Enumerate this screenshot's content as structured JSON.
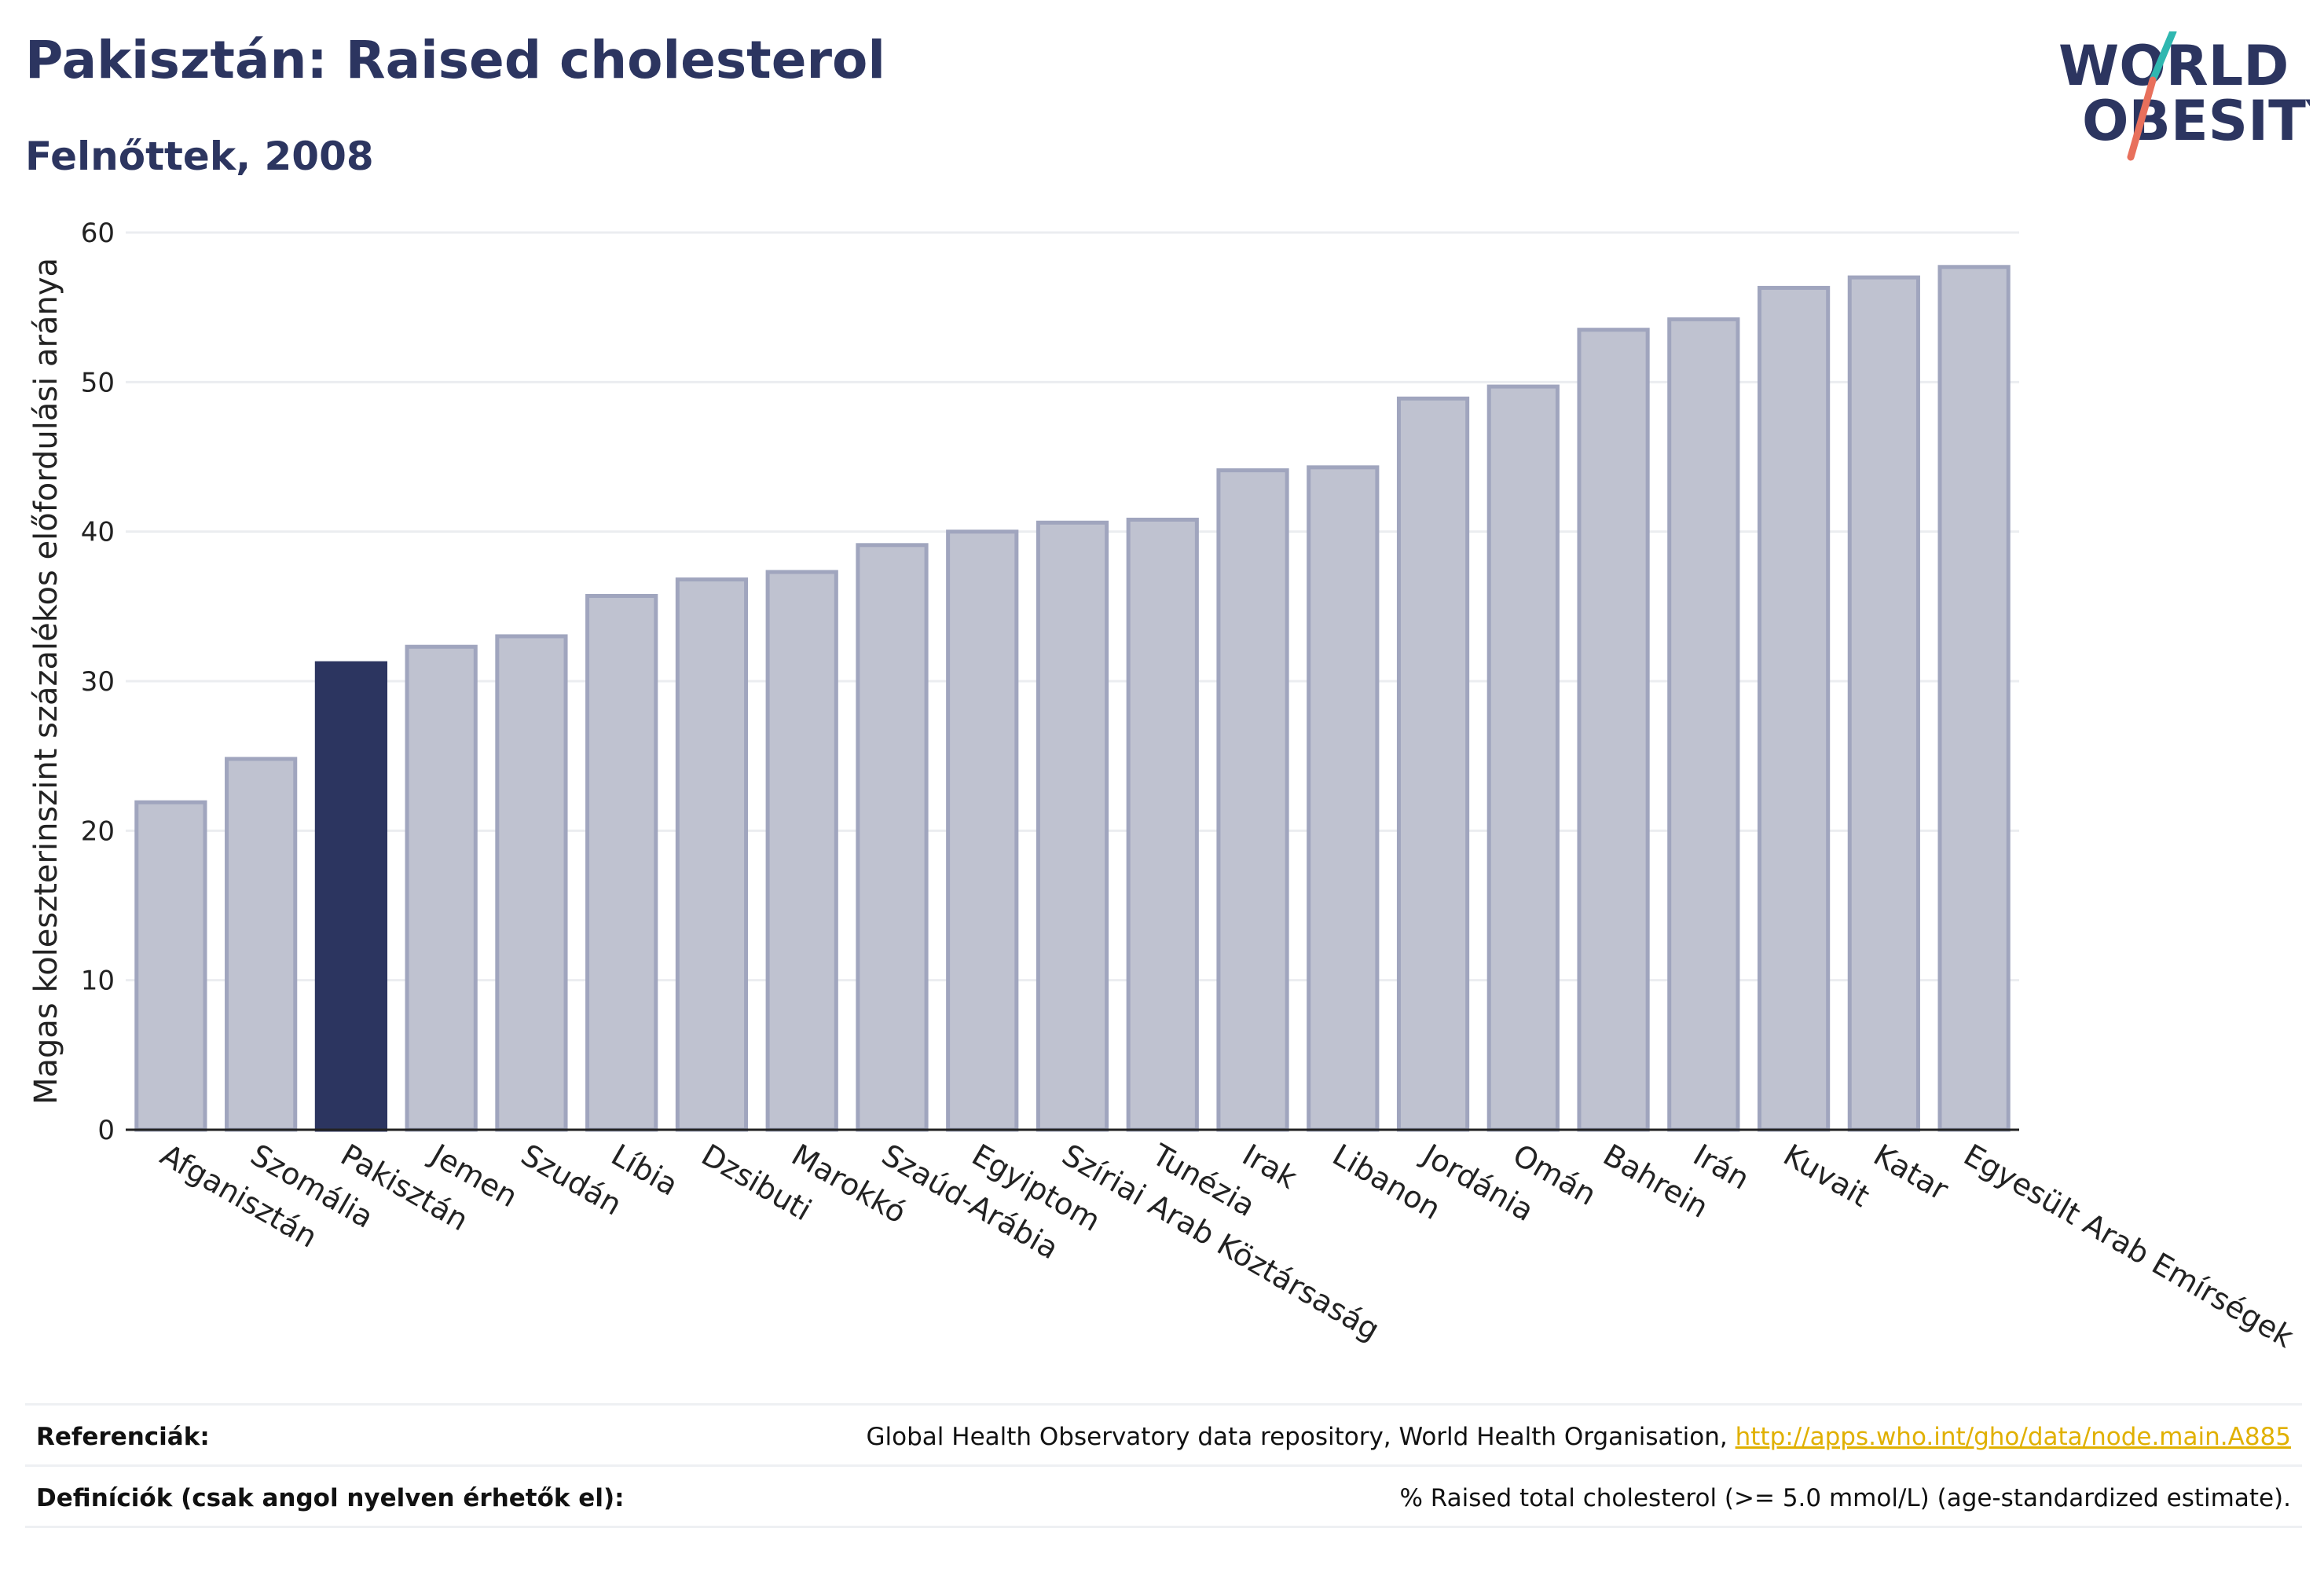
{
  "header": {
    "title": "Pakisztán: Raised cholesterol",
    "subtitle": "Felnőttek, 2008"
  },
  "logo": {
    "line1": "WORLD",
    "line2": "OBESITY",
    "colors": {
      "text": "#2c3560",
      "slash_teal": "#2fb7b0",
      "slash_red": "#e8705c"
    }
  },
  "chart_data": {
    "type": "bar",
    "title": "Pakisztán: Raised cholesterol",
    "subtitle": "Felnőttek, 2008",
    "xlabel": "",
    "ylabel": "Magas koleszterinszint százalékos előfordulási aránya",
    "ylim": [
      0,
      60
    ],
    "yticks": [
      0,
      10,
      20,
      30,
      40,
      50,
      60
    ],
    "grid": true,
    "categories": [
      "Afganisztán",
      "Szomália",
      "Pakisztán",
      "Jemen",
      "Szudán",
      "Líbia",
      "Dzsibuti",
      "Marokkó",
      "Szaúd-Arábia",
      "Egyiptom",
      "Szíriai Arab Köztársaság",
      "Tunézia",
      "Irak",
      "Libanon",
      "Jordánia",
      "Omán",
      "Bahrein",
      "Irán",
      "Kuvait",
      "Katar",
      "Egyesült Arab Emírségek"
    ],
    "values": [
      21.9,
      24.8,
      31.2,
      32.3,
      33.0,
      35.7,
      36.8,
      37.3,
      39.1,
      40.0,
      40.6,
      40.8,
      44.1,
      44.3,
      48.9,
      49.7,
      53.5,
      54.2,
      56.3,
      57.0,
      57.7
    ],
    "highlight": "Pakisztán",
    "colors": {
      "bar": "#bfc2d0",
      "bar_edge": "#a0a5be",
      "highlight": "#2c3560",
      "grid": "#ebedf0",
      "axis": "#222222"
    }
  },
  "footer": {
    "references_label": "Referenciák:",
    "references_text": "Global Health Observatory data repository, World Health Organisation, ",
    "references_link": "http://apps.who.int/gho/data/node.main.A885",
    "definitions_label": "Definíciók (csak angol nyelven érhetők el):",
    "definitions_text": "% Raised total cholesterol (>= 5.0 mmol/L) (age-standardized estimate)."
  }
}
